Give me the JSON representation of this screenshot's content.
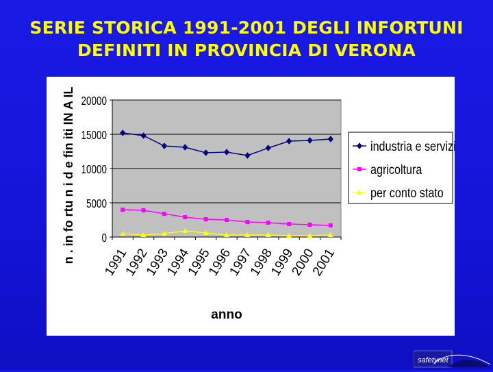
{
  "slide": {
    "title_line1": "SERIE STORICA 1991-2001 DEGLI INFORTUNI",
    "title_line2": "DEFINITI IN PROVINCIA DI VERONA"
  },
  "chart_data": {
    "type": "line",
    "title": "",
    "xlabel": "anno",
    "ylabel": "n . in fo rtu n i d e fin iti IN A IL",
    "categories": [
      "1991",
      "1992",
      "1993",
      "1994",
      "1995",
      "1996",
      "1997",
      "1998",
      "1999",
      "2000",
      "2001"
    ],
    "ylim": [
      0,
      20000
    ],
    "yticks": [
      0,
      5000,
      10000,
      15000,
      20000
    ],
    "grid": true,
    "legend_position": "right",
    "plot_background": "#c0c0c0",
    "series": [
      {
        "name": "industria e servizi",
        "color": "#000080",
        "marker": "diamond",
        "values": [
          15200,
          14800,
          13300,
          13100,
          12300,
          12400,
          11900,
          13000,
          14000,
          14100,
          14300
        ]
      },
      {
        "name": "agricoltura",
        "color": "#ff00ff",
        "marker": "square",
        "values": [
          4000,
          3900,
          3400,
          2900,
          2600,
          2500,
          2200,
          2100,
          1900,
          1800,
          1700
        ]
      },
      {
        "name": "per conto stato",
        "color": "#ffff00",
        "marker": "triangle",
        "values": [
          500,
          300,
          500,
          900,
          600,
          300,
          300,
          300,
          200,
          200,
          300
        ]
      }
    ]
  },
  "logo": {
    "text": "safetynet"
  }
}
